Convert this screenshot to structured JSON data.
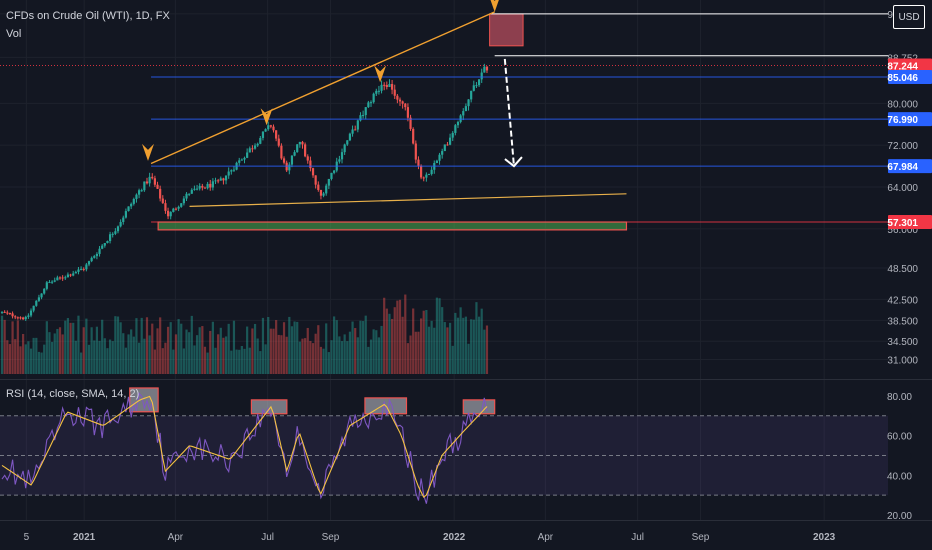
{
  "header": {
    "symbol_title": "CFDs on Crude Oil (WTI), 1D, FX",
    "volume_label": "Vol",
    "currency_label": "USD"
  },
  "rsi_panel": {
    "label": "RSI (14, close, SMA, 14, 2)"
  },
  "colors": {
    "background": "#131722",
    "candle_up": "#26a69a",
    "candle_down": "#ef5350",
    "trendline": "#f0a030",
    "rsi_line": "#7e57c2",
    "rsi_ma": "#f5c242",
    "resistance_box": "#e05a6c",
    "support_box": "#4caf50"
  },
  "price_axis": {
    "ticks": [
      {
        "value": 97.1,
        "label": "97.100"
      },
      {
        "value": 88.8,
        "label": "88.752"
      },
      {
        "value": 80.0,
        "label": "80.000"
      },
      {
        "value": 72.0,
        "label": "72.000"
      },
      {
        "value": 64.0,
        "label": "64.000"
      },
      {
        "value": 56.0,
        "label": "56.000"
      },
      {
        "value": 48.5,
        "label": "48.500"
      },
      {
        "value": 42.5,
        "label": "42.500"
      },
      {
        "value": 38.5,
        "label": "38.500"
      },
      {
        "value": 34.5,
        "label": "34.500"
      },
      {
        "value": 31.0,
        "label": "31.000"
      }
    ],
    "markers": [
      {
        "value": 87.244,
        "label": "87.244",
        "color": "#f23645",
        "line": "dotted"
      },
      {
        "value": 85.046,
        "label": "85.046",
        "color": "#2962ff",
        "line": "solid"
      },
      {
        "value": 76.99,
        "label": "76.990",
        "color": "#2962ff",
        "line": "solid"
      },
      {
        "value": 67.984,
        "label": "67.984",
        "color": "#2962ff",
        "line": "solid"
      },
      {
        "value": 57.301,
        "label": "57.301",
        "color": "#f23645",
        "line": "solid"
      }
    ]
  },
  "time_axis": {
    "labels": [
      {
        "date": "2020-11-05",
        "label": "5"
      },
      {
        "date": "2021-01-01",
        "label": "2021"
      },
      {
        "date": "2021-04-01",
        "label": "Apr"
      },
      {
        "date": "2021-07-01",
        "label": "Jul"
      },
      {
        "date": "2021-09-01",
        "label": "Sep"
      },
      {
        "date": "2022-01-01",
        "label": "2022"
      },
      {
        "date": "2022-04-01",
        "label": "Apr"
      },
      {
        "date": "2022-07-01",
        "label": "Jul"
      },
      {
        "date": "2022-09-01",
        "label": "Sep"
      },
      {
        "date": "2023-01-01",
        "label": "2023"
      }
    ]
  },
  "chart_data": {
    "type": "candlestick",
    "title": "CFDs on Crude Oil (WTI), 1D, FX",
    "price_range": [
      29,
      99
    ],
    "date_range": [
      "2020-10-10",
      "2023-03-05"
    ],
    "price_series": [
      {
        "date": "2020-10-12",
        "close": 40.0
      },
      {
        "date": "2020-11-05",
        "close": 38.8
      },
      {
        "date": "2020-11-25",
        "close": 45.5
      },
      {
        "date": "2021-01-01",
        "close": 48.5
      },
      {
        "date": "2021-02-01",
        "close": 56.0
      },
      {
        "date": "2021-02-25",
        "close": 63.5
      },
      {
        "date": "2021-03-08",
        "close": 66.0
      },
      {
        "date": "2021-03-25",
        "close": 58.5
      },
      {
        "date": "2021-04-15",
        "close": 63.0
      },
      {
        "date": "2021-05-15",
        "close": 65.0
      },
      {
        "date": "2021-06-15",
        "close": 71.5
      },
      {
        "date": "2021-07-05",
        "close": 76.0
      },
      {
        "date": "2021-07-20",
        "close": 66.5
      },
      {
        "date": "2021-08-01",
        "close": 73.5
      },
      {
        "date": "2021-08-22",
        "close": 62.0
      },
      {
        "date": "2021-09-15",
        "close": 72.0
      },
      {
        "date": "2021-10-15",
        "close": 82.0
      },
      {
        "date": "2021-10-25",
        "close": 84.0
      },
      {
        "date": "2021-11-15",
        "close": 79.0
      },
      {
        "date": "2021-11-26",
        "close": 68.0
      },
      {
        "date": "2021-12-01",
        "close": 65.0
      },
      {
        "date": "2021-12-20",
        "close": 70.5
      },
      {
        "date": "2022-01-10",
        "close": 79.0
      },
      {
        "date": "2022-01-25",
        "close": 85.0
      },
      {
        "date": "2022-02-03",
        "close": 87.2
      }
    ],
    "volume_range": [
      0,
      80
    ],
    "rsi": {
      "ylim": [
        18,
        86
      ],
      "ticks": [
        80,
        60,
        40,
        20
      ],
      "levels": [
        70,
        50,
        30
      ],
      "series": [
        {
          "date": "2020-10-12",
          "value": 45
        },
        {
          "date": "2020-11-10",
          "value": 35
        },
        {
          "date": "2020-12-15",
          "value": 72
        },
        {
          "date": "2021-01-20",
          "value": 65
        },
        {
          "date": "2021-02-25",
          "value": 78
        },
        {
          "date": "2021-03-08",
          "value": 80
        },
        {
          "date": "2021-03-22",
          "value": 42
        },
        {
          "date": "2021-04-15",
          "value": 55
        },
        {
          "date": "2021-05-25",
          "value": 48
        },
        {
          "date": "2021-07-05",
          "value": 75
        },
        {
          "date": "2021-07-20",
          "value": 42
        },
        {
          "date": "2021-08-01",
          "value": 62
        },
        {
          "date": "2021-08-22",
          "value": 30
        },
        {
          "date": "2021-09-20",
          "value": 65
        },
        {
          "date": "2021-10-25",
          "value": 76
        },
        {
          "date": "2021-11-10",
          "value": 60
        },
        {
          "date": "2021-11-26",
          "value": 35
        },
        {
          "date": "2021-12-03",
          "value": 28
        },
        {
          "date": "2021-12-20",
          "value": 50
        },
        {
          "date": "2022-01-10",
          "value": 62
        },
        {
          "date": "2022-02-03",
          "value": 75
        }
      ]
    },
    "annotations": {
      "upper_trendline": [
        {
          "date": "2021-03-08",
          "price": 68.5
        },
        {
          "date": "2022-02-10",
          "price": 97.5
        }
      ],
      "lower_trendline": [
        {
          "date": "2021-04-15",
          "price": 60.3
        },
        {
          "date": "2022-06-20",
          "price": 62.7
        }
      ],
      "support_zone": {
        "date_from": "2021-03-15",
        "date_to": "2022-06-20",
        "price_from": 55.8,
        "price_to": 57.3
      },
      "resistance_zone": {
        "date_from": "2022-02-05",
        "date_to": "2022-03-10",
        "price_from": 91.0,
        "price_to": 97.1
      },
      "resistance_line": {
        "date_from": "2022-02-05",
        "date_to": "2023-03-05",
        "price": 97.1
      },
      "target_line": {
        "date_from": "2022-02-10",
        "date_to": "2023-03-05",
        "price": 89.1
      },
      "arrow": [
        {
          "date": "2022-02-20",
          "price": 88.5
        },
        {
          "date": "2022-03-01",
          "price": 68.0
        }
      ],
      "peak_markers": [
        {
          "date": "2021-03-05",
          "price": 69.0
        },
        {
          "date": "2021-06-30",
          "price": 75.8
        },
        {
          "date": "2021-10-20",
          "price": 84.0
        },
        {
          "date": "2022-02-10",
          "price": 97.5
        }
      ],
      "rsi_boxes": [
        {
          "date_from": "2021-02-15",
          "date_to": "2021-03-15",
          "value_from": 72,
          "value_to": 84
        },
        {
          "date_from": "2021-06-15",
          "date_to": "2021-07-20",
          "value_from": 71,
          "value_to": 78
        },
        {
          "date_from": "2021-10-05",
          "date_to": "2021-11-15",
          "value_from": 71,
          "value_to": 79
        },
        {
          "date_from": "2022-01-10",
          "date_to": "2022-02-10",
          "value_from": 71,
          "value_to": 78
        }
      ]
    }
  }
}
